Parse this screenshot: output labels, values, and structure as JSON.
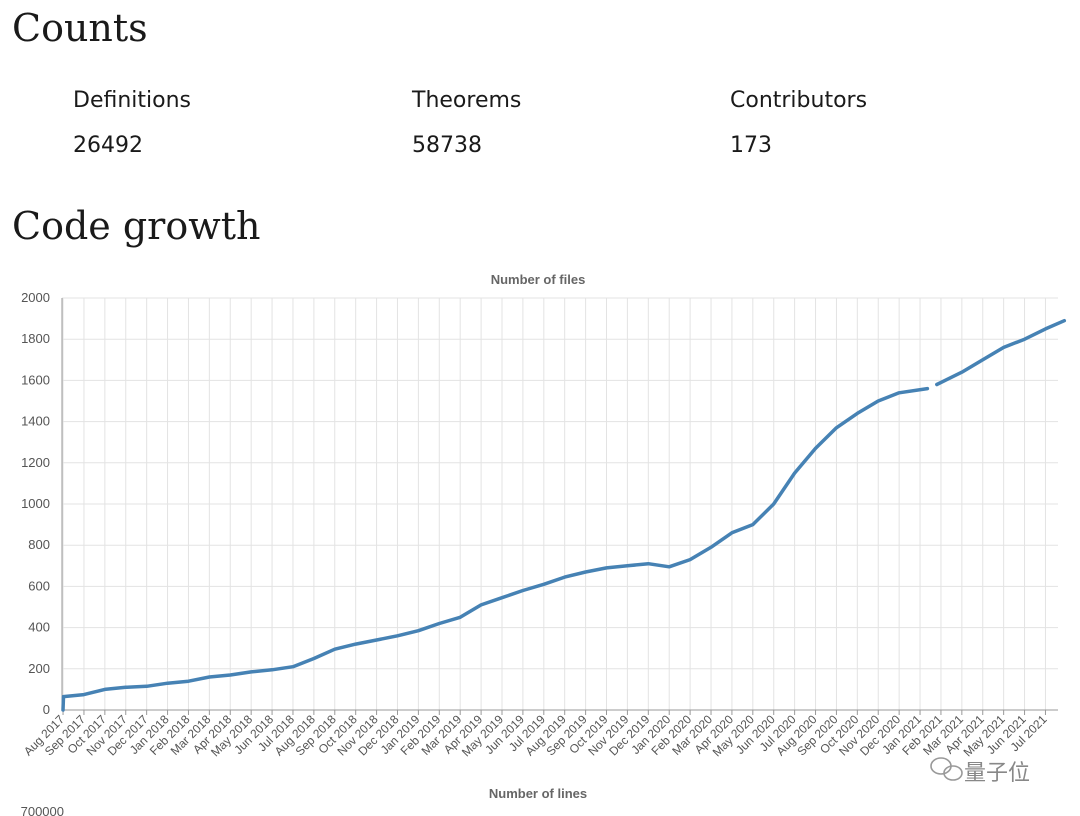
{
  "counts": {
    "title": "Counts",
    "items": [
      {
        "label": "Definitions",
        "value": "26492"
      },
      {
        "label": "Theorems",
        "value": "58738"
      },
      {
        "label": "Contributors",
        "value": "173"
      }
    ]
  },
  "growth": {
    "title": "Code growth"
  },
  "second_chart": {
    "title": "Number of lines",
    "first_tick": "700000"
  },
  "watermark": {
    "text": "量子位"
  },
  "colors": {
    "line": "#4682b4",
    "grid": "#e3e3e3",
    "axis": "#999999"
  },
  "chart_data": {
    "type": "line",
    "title": "Number of files",
    "xlabel": "",
    "ylabel": "",
    "ylim": [
      0,
      2000
    ],
    "grid": true,
    "y_ticks": [
      0,
      200,
      400,
      600,
      800,
      1000,
      1200,
      1400,
      1600,
      1800,
      2000
    ],
    "x_ticks": [
      "Aug 2017",
      "Sep 2017",
      "Oct 2017",
      "Nov 2017",
      "Dec 2017",
      "Jan 2018",
      "Feb 2018",
      "Mar 2018",
      "Apr 2018",
      "May 2018",
      "Jun 2018",
      "Jul 2018",
      "Aug 2018",
      "Sep 2018",
      "Oct 2018",
      "Nov 2018",
      "Dec 2018",
      "Jan 2019",
      "Feb 2019",
      "Mar 2019",
      "Apr 2019",
      "May 2019",
      "Jun 2019",
      "Jul 2019",
      "Aug 2019",
      "Sep 2019",
      "Oct 2019",
      "Nov 2019",
      "Dec 2019",
      "Jan 2020",
      "Feb 2020",
      "Mar 2020",
      "Apr 2020",
      "May 2020",
      "Jun 2020",
      "Jul 2020",
      "Aug 2020",
      "Sep 2020",
      "Oct 2020",
      "Nov 2020",
      "Dec 2020",
      "Jan 2021",
      "Feb 2021",
      "Mar 2021",
      "Apr 2021",
      "May 2021",
      "Jun 2021",
      "Jul 2021"
    ],
    "series": [
      {
        "x": [
          "Aug 2017",
          "Aug 2017",
          "Sep 2017",
          "Oct 2017",
          "Nov 2017",
          "Dec 2017",
          "Jan 2018",
          "Feb 2018",
          "Mar 2018",
          "Apr 2018",
          "May 2018",
          "Jun 2018",
          "Jul 2018",
          "Aug 2018",
          "Sep 2018",
          "Oct 2018",
          "Nov 2018",
          "Dec 2018",
          "Jan 2019",
          "Feb 2019",
          "Mar 2019",
          "Apr 2019",
          "May 2019",
          "Jun 2019",
          "Jul 2019",
          "Aug 2019",
          "Sep 2019",
          "Oct 2019",
          "Nov 2019",
          "Dec 2019",
          "Jan 2020",
          "Feb 2020",
          "Mar 2020",
          "Apr 2020",
          "May 2020",
          "Jun 2020",
          "Jul 2020",
          "Aug 2020",
          "Sep 2020",
          "Oct 2020",
          "Nov 2020",
          "Dec 2020",
          "Jan 2021",
          null,
          "Feb 2021",
          "Mar 2021",
          "Apr 2021",
          "May 2021",
          "Jun 2021",
          "Jul 2021",
          "Aug 2021"
        ],
        "values": [
          0,
          65,
          75,
          100,
          110,
          115,
          130,
          140,
          160,
          170,
          185,
          195,
          210,
          250,
          295,
          320,
          340,
          360,
          385,
          420,
          450,
          510,
          545,
          580,
          610,
          645,
          670,
          690,
          700,
          710,
          695,
          730,
          790,
          860,
          900,
          1000,
          1150,
          1270,
          1370,
          1440,
          1500,
          1540,
          1560,
          null,
          1580,
          1640,
          1700,
          1760,
          1800,
          1850,
          1890
        ]
      }
    ]
  }
}
